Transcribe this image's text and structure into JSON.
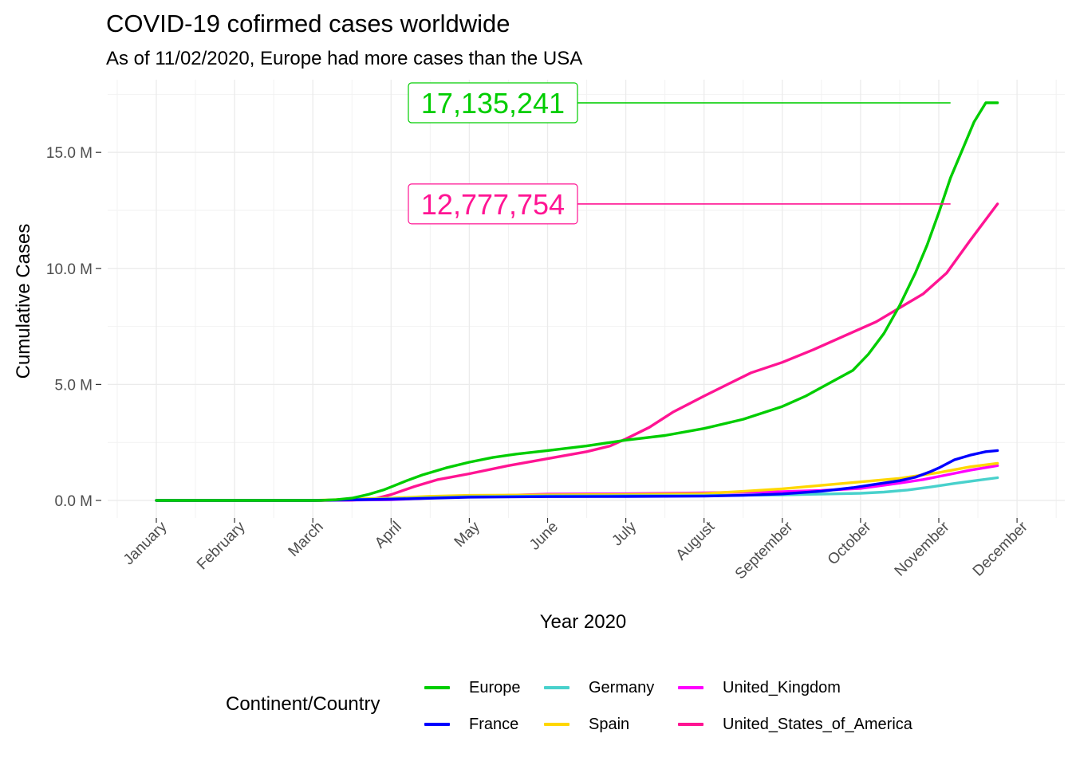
{
  "chart_data": {
    "type": "line",
    "title": "COVID-19 cofirmed cases worldwide",
    "subtitle": "As of 11/02/2020, Europe had more cases than the USA",
    "xlabel": "Year 2020",
    "ylabel": "Cumulative Cases",
    "x_unit": "months since 2020-01-01",
    "x_ticks": [
      "January",
      "February",
      "March",
      "April",
      "May",
      "June",
      "July",
      "August",
      "September",
      "October",
      "November",
      "December"
    ],
    "y_ticks": [
      "0.0 M",
      "5.0 M",
      "10.0 M",
      "15.0 M"
    ],
    "ylim": [
      -600000,
      17800000
    ],
    "grid": true,
    "legend_title": "Continent/Country",
    "legend_position": "bottom",
    "series": [
      {
        "name": "Europe",
        "color": "#00CD00",
        "x": [
          0,
          2.1,
          2.3,
          2.5,
          2.7,
          2.9,
          3.0,
          3.2,
          3.4,
          3.7,
          4.0,
          4.3,
          4.6,
          5.0,
          5.5,
          6.0,
          6.5,
          7.0,
          7.5,
          8.0,
          8.3,
          8.6,
          8.9,
          9.1,
          9.3,
          9.5,
          9.7,
          9.85,
          10.0,
          10.15,
          10.3,
          10.45,
          10.6,
          10.75
        ],
        "y": [
          0,
          0,
          30000,
          100000,
          250000,
          450000,
          580000,
          850000,
          1100000,
          1400000,
          1650000,
          1850000,
          2000000,
          2150000,
          2350000,
          2600000,
          2800000,
          3100000,
          3500000,
          4050000,
          4500000,
          5050000,
          5600000,
          6300000,
          7200000,
          8400000,
          9800000,
          11000000,
          12400000,
          13900000,
          15100000,
          16300000,
          17135241,
          17135241
        ]
      },
      {
        "name": "France",
        "color": "#0000FF",
        "x": [
          0,
          2.0,
          3.0,
          4.0,
          5.0,
          6.0,
          7.0,
          7.5,
          8.0,
          8.5,
          8.9,
          9.2,
          9.5,
          9.7,
          9.9,
          10.0,
          10.2,
          10.4,
          10.6,
          10.75
        ],
        "y": [
          0,
          0,
          50000,
          140000,
          165000,
          170000,
          185000,
          220000,
          280000,
          400000,
          550000,
          700000,
          850000,
          1000000,
          1250000,
          1400000,
          1750000,
          1950000,
          2100000,
          2150000
        ]
      },
      {
        "name": "Germany",
        "color": "#48D1CC",
        "x": [
          0,
          2.0,
          3.0,
          4.0,
          5.0,
          6.0,
          7.0,
          8.0,
          8.5,
          9.0,
          9.3,
          9.6,
          9.9,
          10.2,
          10.5,
          10.75
        ],
        "y": [
          0,
          0,
          70000,
          160000,
          190000,
          200000,
          210000,
          240000,
          270000,
          310000,
          360000,
          450000,
          580000,
          730000,
          870000,
          980000
        ]
      },
      {
        "name": "Spain",
        "color": "#FFD700",
        "x": [
          0,
          2.0,
          2.7,
          3.0,
          3.5,
          4.0,
          5.0,
          6.0,
          7.0,
          7.5,
          8.0,
          8.5,
          9.0,
          9.5,
          10.0,
          10.4,
          10.75
        ],
        "y": [
          0,
          0,
          80000,
          100000,
          180000,
          220000,
          240000,
          260000,
          300000,
          390000,
          500000,
          650000,
          800000,
          950000,
          1200000,
          1450000,
          1600000
        ]
      },
      {
        "name": "United_Kingdom",
        "color": "#FF00FF",
        "x": [
          0,
          2.0,
          3.0,
          4.0,
          5.0,
          6.0,
          7.0,
          8.0,
          8.5,
          9.0,
          9.5,
          9.8,
          10.1,
          10.4,
          10.75
        ],
        "y": [
          0,
          0,
          30000,
          170000,
          270000,
          290000,
          330000,
          380000,
          430000,
          520000,
          750000,
          900000,
          1100000,
          1300000,
          1500000
        ]
      },
      {
        "name": "United_States_of_America",
        "color": "#FF1493",
        "x": [
          0,
          2.0,
          2.5,
          2.8,
          3.0,
          3.3,
          3.6,
          4.0,
          4.5,
          5.0,
          5.5,
          5.8,
          6.0,
          6.3,
          6.6,
          7.0,
          7.3,
          7.6,
          8.0,
          8.4,
          8.8,
          9.2,
          9.5,
          9.8,
          10.1,
          10.4,
          10.75
        ],
        "y": [
          0,
          0,
          10000,
          80000,
          250000,
          600000,
          900000,
          1150000,
          1500000,
          1800000,
          2100000,
          2350000,
          2650000,
          3150000,
          3800000,
          4500000,
          5000000,
          5500000,
          5950000,
          6500000,
          7100000,
          7700000,
          8300000,
          8900000,
          9800000,
          11200000,
          12777754
        ]
      }
    ],
    "annotations": [
      {
        "text": "17,135,241",
        "series": "Europe",
        "value": 17135241,
        "color": "#00CD00"
      },
      {
        "text": "12,777,754",
        "series": "United_States_of_America",
        "value": 12777754,
        "color": "#FF1493"
      }
    ]
  }
}
